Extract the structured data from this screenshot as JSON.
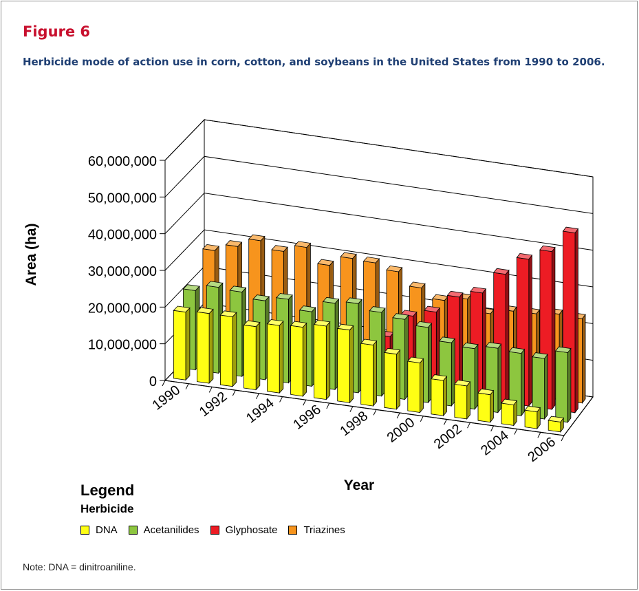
{
  "figure": {
    "label": "Figure 6",
    "caption": "Herbicide mode of action use in corn, cotton, and soybeans in the United States from 1990 to 2006."
  },
  "chart_data": {
    "type": "bar",
    "style": "3d-clustered-column",
    "categories": [
      "1990",
      "1991",
      "1992",
      "1993",
      "1994",
      "1995",
      "1996",
      "1997",
      "1998",
      "1999",
      "2000",
      "2001",
      "2002",
      "2003",
      "2004",
      "2005",
      "2006"
    ],
    "x_tick_labels": [
      "1990",
      "1992",
      "1994",
      "1996",
      "1998",
      "2000",
      "2002",
      "2004",
      "2006"
    ],
    "xlabel": "Year",
    "ylabel": "Area (ha)",
    "ylim": [
      0,
      60000000
    ],
    "y_tick_labels": [
      "0",
      "10,000,000",
      "20,000,000",
      "30,000,000",
      "40,000,000",
      "50,000,000",
      "60,000,000"
    ],
    "grid": true,
    "legend_position": "bottom-left",
    "series": [
      {
        "name": "DNA",
        "color": "#ffff14",
        "values": [
          18500000,
          19000000,
          19000000,
          17200000,
          18400000,
          18800000,
          20000000,
          19800000,
          16600000,
          15000000,
          13500000,
          9600000,
          9000000,
          7500000,
          5600000,
          4600000,
          2700000
        ]
      },
      {
        "name": "Acetanilides",
        "color": "#8dc63f",
        "values": [
          21600000,
          23400000,
          23000000,
          21500000,
          22800000,
          20300000,
          23500000,
          24300000,
          22800000,
          21800000,
          20500000,
          17200000,
          16500000,
          17500000,
          17000000,
          16500000,
          19000000
        ]
      },
      {
        "name": "Glyphosate",
        "color": "#ed1c24",
        "values": [
          0,
          0,
          0,
          0,
          0,
          0,
          0,
          0,
          13500000,
          20000000,
          22000000,
          27000000,
          29000000,
          35000000,
          40000000,
          43000000,
          49000000
        ]
      },
      {
        "name": "Triazines",
        "color": "#f7941d",
        "values": [
          27000000,
          29000000,
          31500000,
          29500000,
          31500000,
          27500000,
          30300000,
          30000000,
          28500000,
          25000000,
          22500000,
          23800000,
          20700000,
          22300000,
          22500000,
          23300000,
          23000000
        ]
      }
    ]
  },
  "legend": {
    "title": "Legend",
    "subtitle": "Herbicide"
  },
  "note": "Note: DNA = dinitroaniline."
}
